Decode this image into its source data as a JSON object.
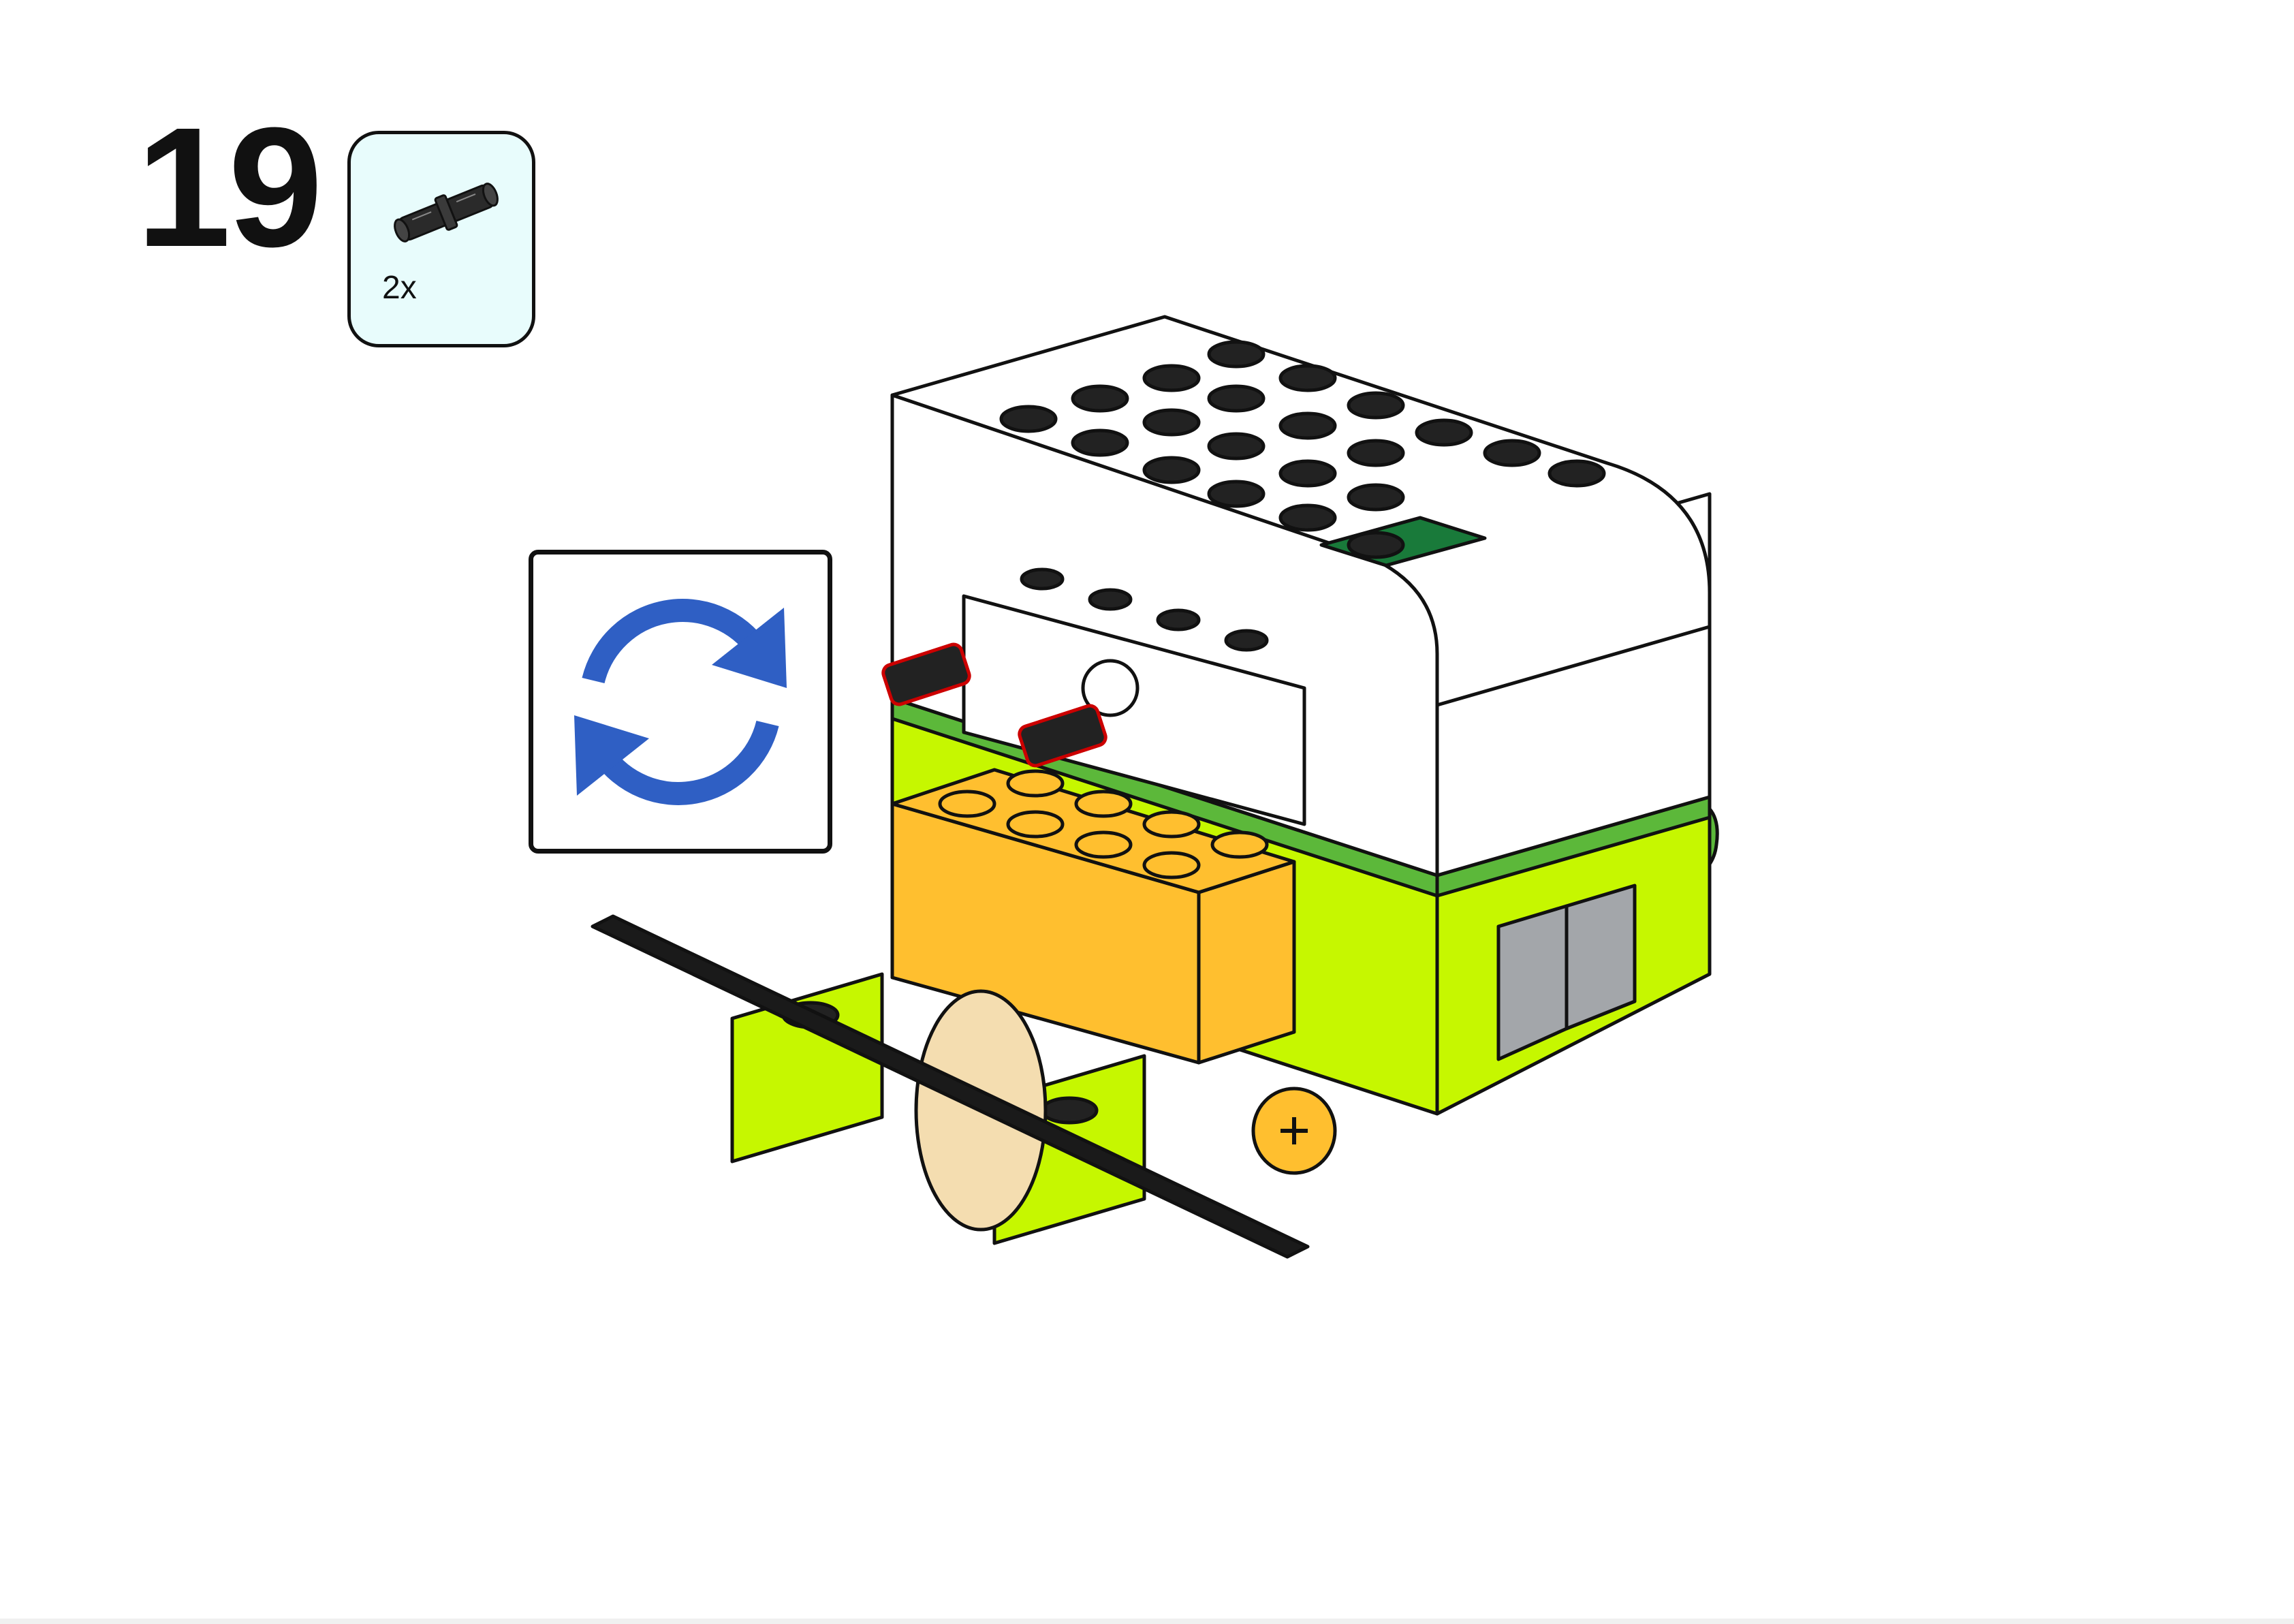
{
  "step": {
    "number": "19"
  },
  "parts_callout": {
    "quantity": "2x",
    "part_icon": "black-friction-pin-icon"
  },
  "rotate_callout": {
    "icon": "rotate-arrows-icon",
    "color": "#2f5fc4"
  },
  "model": {
    "colors": {
      "hub_white": "#ffffff",
      "hub_green_band": "#5cb83a",
      "lime": "#c6f700",
      "orange": "#ffbf2f",
      "tan_gear": "#f4ddb0",
      "axle_black": "#1a1a1a",
      "grey": "#a3a6aa",
      "hub_button_green": "#197a3a",
      "highlight_red": "#cc0000"
    }
  }
}
